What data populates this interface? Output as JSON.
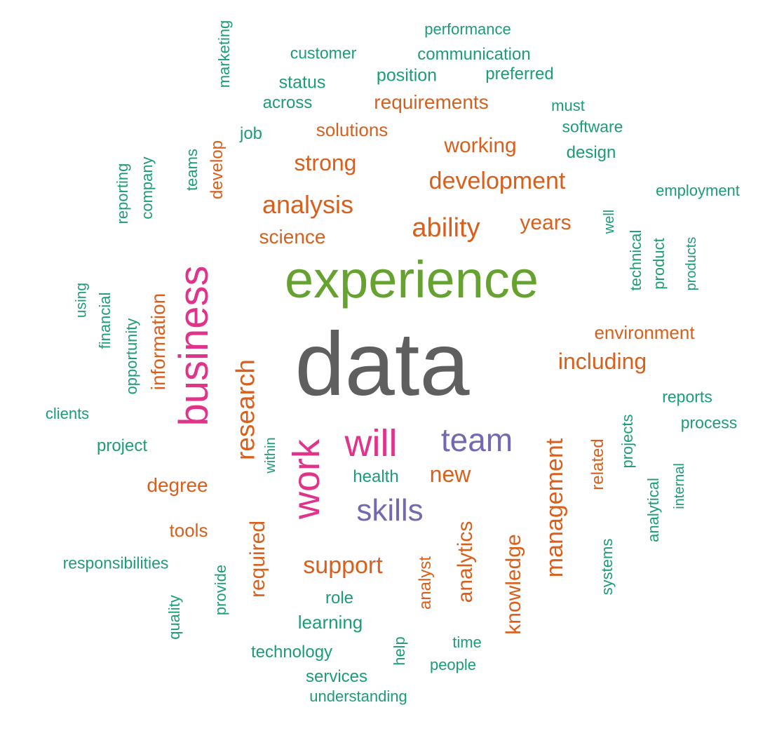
{
  "palette": {
    "gray": "#5f5f5f",
    "green": "#66a22f",
    "pink": "#e0338a",
    "purple": "#7468b0",
    "orange": "#d95f1c",
    "teal": "#1c9c78"
  },
  "words": [
    {
      "text": "data",
      "color": "gray"
    },
    {
      "text": "experience",
      "color": "green"
    },
    {
      "text": "business",
      "color": "pink"
    },
    {
      "text": "work",
      "color": "pink"
    },
    {
      "text": "will",
      "color": "pink"
    },
    {
      "text": "team",
      "color": "purple"
    },
    {
      "text": "skills",
      "color": "purple"
    },
    {
      "text": "analysis",
      "color": "orange"
    },
    {
      "text": "development",
      "color": "orange"
    },
    {
      "text": "ability",
      "color": "orange"
    },
    {
      "text": "research",
      "color": "orange"
    },
    {
      "text": "management",
      "color": "orange"
    },
    {
      "text": "including",
      "color": "orange"
    },
    {
      "text": "strong",
      "color": "orange"
    },
    {
      "text": "working",
      "color": "orange"
    },
    {
      "text": "years",
      "color": "orange"
    },
    {
      "text": "science",
      "color": "orange"
    },
    {
      "text": "requirements",
      "color": "orange"
    },
    {
      "text": "solutions",
      "color": "orange"
    },
    {
      "text": "environment",
      "color": "orange"
    },
    {
      "text": "information",
      "color": "orange"
    },
    {
      "text": "new",
      "color": "orange"
    },
    {
      "text": "support",
      "color": "orange"
    },
    {
      "text": "degree",
      "color": "orange"
    },
    {
      "text": "tools",
      "color": "orange"
    },
    {
      "text": "required",
      "color": "orange"
    },
    {
      "text": "analytics",
      "color": "orange"
    },
    {
      "text": "knowledge",
      "color": "orange"
    },
    {
      "text": "analyst",
      "color": "orange"
    },
    {
      "text": "related",
      "color": "orange"
    },
    {
      "text": "develop",
      "color": "orange"
    },
    {
      "text": "performance",
      "color": "teal"
    },
    {
      "text": "communication",
      "color": "teal"
    },
    {
      "text": "customer",
      "color": "teal"
    },
    {
      "text": "position",
      "color": "teal"
    },
    {
      "text": "preferred",
      "color": "teal"
    },
    {
      "text": "status",
      "color": "teal"
    },
    {
      "text": "across",
      "color": "teal"
    },
    {
      "text": "must",
      "color": "teal"
    },
    {
      "text": "software",
      "color": "teal"
    },
    {
      "text": "design",
      "color": "teal"
    },
    {
      "text": "job",
      "color": "teal"
    },
    {
      "text": "marketing",
      "color": "teal"
    },
    {
      "text": "employment",
      "color": "teal"
    },
    {
      "text": "teams",
      "color": "teal"
    },
    {
      "text": "reporting",
      "color": "teal"
    },
    {
      "text": "company",
      "color": "teal"
    },
    {
      "text": "well",
      "color": "teal"
    },
    {
      "text": "technical",
      "color": "teal"
    },
    {
      "text": "product",
      "color": "teal"
    },
    {
      "text": "products",
      "color": "teal"
    },
    {
      "text": "using",
      "color": "teal"
    },
    {
      "text": "financial",
      "color": "teal"
    },
    {
      "text": "opportunity",
      "color": "teal"
    },
    {
      "text": "clients",
      "color": "teal"
    },
    {
      "text": "project",
      "color": "teal"
    },
    {
      "text": "within",
      "color": "teal"
    },
    {
      "text": "health",
      "color": "teal"
    },
    {
      "text": "reports",
      "color": "teal"
    },
    {
      "text": "process",
      "color": "teal"
    },
    {
      "text": "projects",
      "color": "teal"
    },
    {
      "text": "analytical",
      "color": "teal"
    },
    {
      "text": "internal",
      "color": "teal"
    },
    {
      "text": "systems",
      "color": "teal"
    },
    {
      "text": "responsibilities",
      "color": "teal"
    },
    {
      "text": "provide",
      "color": "teal"
    },
    {
      "text": "quality",
      "color": "teal"
    },
    {
      "text": "role",
      "color": "teal"
    },
    {
      "text": "learning",
      "color": "teal"
    },
    {
      "text": "technology",
      "color": "teal"
    },
    {
      "text": "help",
      "color": "teal"
    },
    {
      "text": "time",
      "color": "teal"
    },
    {
      "text": "people",
      "color": "teal"
    },
    {
      "text": "services",
      "color": "teal"
    },
    {
      "text": "understanding",
      "color": "teal"
    }
  ]
}
